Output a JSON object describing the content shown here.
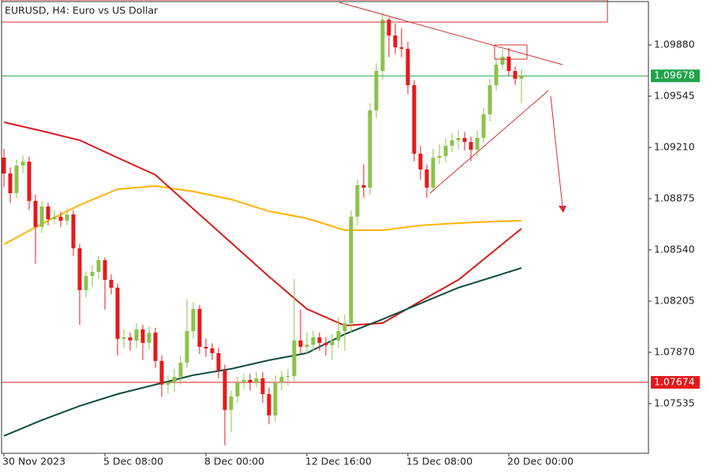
{
  "chart_data": {
    "type": "candlestick",
    "title": "EURUSD, H4:  Euro vs US Dollar",
    "categories": [
      "30 Nov 2023",
      null,
      null,
      null,
      null,
      null,
      null,
      null,
      null,
      null,
      null,
      null,
      null,
      null,
      null,
      null,
      "5 Dec 08:00",
      null,
      null,
      null,
      null,
      null,
      null,
      null,
      null,
      null,
      null,
      null,
      null,
      null,
      null,
      null,
      "8 Dec 00:00",
      null,
      null,
      null,
      null,
      null,
      null,
      null,
      null,
      null,
      null,
      null,
      null,
      null,
      null,
      null,
      "12 Dec 16:00",
      null,
      null,
      null,
      null,
      null,
      null,
      null,
      null,
      null,
      null,
      null,
      null,
      null,
      null,
      null,
      "15 Dec 08:00",
      null,
      null,
      null,
      null,
      null,
      null,
      null,
      null,
      null,
      null,
      null,
      null,
      null,
      null,
      null,
      "20 Dec 00:00",
      null,
      null
    ],
    "open": [
      1.09143,
      1.0904,
      1.08911,
      1.09092,
      1.09117,
      1.0886,
      1.0869,
      1.08824,
      1.08741,
      1.08757,
      1.08731,
      1.08772,
      1.08551,
      1.08277,
      1.0837,
      1.08396,
      1.08473,
      1.08344,
      1.08293,
      1.07958,
      1.07968,
      1.07948,
      1.0802,
      1.07932,
      1.07999,
      1.07814,
      1.07659,
      1.07674,
      1.0771,
      1.07803,
      1.08009,
      1.08154,
      1.07906,
      1.07896,
      1.07865,
      1.07752,
      1.07494,
      1.07582,
      1.07674,
      1.0769,
      1.07674,
      1.077,
      1.07597,
      1.07458,
      1.07674,
      1.0771,
      1.07715,
      1.07948,
      1.07906,
      1.0792,
      1.07968,
      1.07932,
      1.07917,
      1.07948,
      1.08009,
      1.0806,
      1.08757,
      1.08963,
      1.08947,
      1.09452,
      1.0971,
      1.10045,
      1.09942,
      1.09865,
      1.09855,
      1.09617,
      1.09169,
      1.09066,
      1.08947,
      1.09143,
      1.09154,
      1.09221,
      1.09257,
      1.09272,
      1.09246,
      1.09195,
      1.09272,
      1.09427,
      1.09617,
      1.09751,
      1.09803,
      1.0971,
      1.09659
    ],
    "high": [
      1.092,
      1.0908,
      1.0913,
      1.0916,
      1.0915,
      1.089,
      1.0886,
      1.0885,
      1.088,
      1.0879,
      1.0881,
      1.088,
      1.0858,
      1.084,
      1.0844,
      1.085,
      1.0849,
      1.0838,
      1.0832,
      1.0802,
      1.08,
      1.0806,
      1.0805,
      1.0804,
      1.0803,
      1.0785,
      1.0772,
      1.0776,
      1.0785,
      1.0822,
      1.082,
      1.0818,
      1.0796,
      1.0793,
      1.079,
      1.0779,
      1.0762,
      1.0771,
      1.0773,
      1.0773,
      1.0774,
      1.0774,
      1.0764,
      1.0772,
      1.0775,
      1.0776,
      1.0835,
      1.0815,
      1.08,
      1.0801,
      1.08,
      1.0797,
      1.0799,
      1.081,
      1.0812,
      1.088,
      1.09,
      1.091,
      1.095,
      1.0976,
      1.1009,
      1.1006,
      1.1002,
      1.0999,
      1.099,
      1.0965,
      1.0922,
      1.091,
      1.092,
      1.0923,
      1.0927,
      1.093,
      1.0932,
      1.0931,
      1.0928,
      1.0932,
      1.0947,
      1.0966,
      1.098,
      1.0985,
      1.0986,
      1.0974,
      1.0972
    ],
    "low": [
      1.0895,
      1.0885,
      1.0888,
      1.0904,
      1.088,
      1.0845,
      1.0865,
      1.087,
      1.0871,
      1.0869,
      1.087,
      1.085,
      1.0805,
      1.0823,
      1.083,
      1.0835,
      1.0815,
      1.0825,
      1.0785,
      1.079,
      1.0788,
      1.079,
      1.0782,
      1.0789,
      1.0777,
      1.0758,
      1.076,
      1.0761,
      1.0766,
      1.0777,
      1.0796,
      1.0786,
      1.0784,
      1.0782,
      1.077,
      1.0726,
      1.0735,
      1.0754,
      1.0763,
      1.0762,
      1.0764,
      1.0754,
      1.074,
      1.0742,
      1.0762,
      1.0765,
      1.0768,
      1.0786,
      1.0786,
      1.0788,
      1.0788,
      1.0785,
      1.0782,
      1.079,
      1.0788,
      1.08,
      1.087,
      1.0888,
      1.089,
      1.094,
      1.0965,
      1.098,
      1.0982,
      1.098,
      1.0956,
      1.0912,
      1.09,
      1.0888,
      1.0892,
      1.091,
      1.0911,
      1.0918,
      1.092,
      1.0919,
      1.0912,
      1.0915,
      1.0924,
      1.0938,
      1.0958,
      1.0972,
      1.0968,
      1.0962,
      1.095
    ],
    "close": [
      1.0904,
      1.08911,
      1.09092,
      1.09117,
      1.0886,
      1.0869,
      1.08824,
      1.08741,
      1.08757,
      1.08731,
      1.08772,
      1.08551,
      1.08277,
      1.0837,
      1.08396,
      1.08473,
      1.08344,
      1.08293,
      1.07958,
      1.07968,
      1.07948,
      1.0802,
      1.07932,
      1.07999,
      1.07814,
      1.07659,
      1.07674,
      1.0771,
      1.07803,
      1.08009,
      1.08154,
      1.07906,
      1.07896,
      1.07865,
      1.07752,
      1.07494,
      1.07582,
      1.07674,
      1.0769,
      1.07674,
      1.077,
      1.07597,
      1.07458,
      1.07674,
      1.0771,
      1.07715,
      1.07948,
      1.07906,
      1.0792,
      1.07968,
      1.07932,
      1.07917,
      1.07948,
      1.08009,
      1.0806,
      1.08757,
      1.08963,
      1.08947,
      1.09452,
      1.0971,
      1.10045,
      1.09942,
      1.09865,
      1.09855,
      1.09617,
      1.09169,
      1.09066,
      1.08947,
      1.09143,
      1.09154,
      1.09221,
      1.09257,
      1.09272,
      1.09246,
      1.09195,
      1.09272,
      1.09427,
      1.09617,
      1.09751,
      1.09803,
      1.0971,
      1.09659,
      1.09678
    ],
    "up_color": "#8bc34a",
    "down_color": "#e5191b",
    "overlays": [
      {
        "color": "#ffb300",
        "x": [
          0,
          6,
          12,
          18,
          24,
          30,
          36,
          42,
          48,
          54,
          60,
          66,
          72,
          78,
          82
        ],
        "values": [
          1.08576,
          1.0871,
          1.08834,
          1.08937,
          1.08958,
          1.08922,
          1.0887,
          1.08793,
          1.08746,
          1.08669,
          1.08669,
          1.087,
          1.08715,
          1.08726,
          1.08731
        ]
      },
      {
        "color": "#d81b1b",
        "x": [
          0,
          6,
          12,
          18,
          24,
          30,
          36,
          42,
          48,
          54,
          60,
          66,
          72,
          78,
          82
        ],
        "values": [
          1.09375,
          1.09318,
          1.09257,
          1.09143,
          1.0903,
          1.08808,
          1.08587,
          1.08365,
          1.08154,
          1.08045,
          1.08061,
          1.08205,
          1.08344,
          1.08545,
          1.08679
        ]
      },
      {
        "color": "#0d4d40",
        "x": [
          0,
          6,
          12,
          18,
          24,
          30,
          36,
          42,
          48,
          54,
          60,
          66,
          72,
          78,
          82
        ],
        "values": [
          1.07324,
          1.07427,
          1.0752,
          1.07597,
          1.07659,
          1.07721,
          1.07762,
          1.07819,
          1.07865,
          1.07989,
          1.08087,
          1.0819,
          1.08293,
          1.0837,
          1.08422
        ]
      }
    ],
    "price_lines": [
      {
        "value": 1.09678,
        "color": "#1fa34a"
      },
      {
        "value": 1.07674,
        "color": "#e5191b"
      }
    ],
    "ylim": [
      1.0721,
      1.10174
    ],
    "yticks": [
      {
        "value": 1.0988,
        "label": "1.09880"
      },
      1.09545,
      {
        "value": 1.0921,
        "label": "1.09210"
      },
      1.08875,
      {
        "value": 1.0854,
        "label": "1.08540"
      },
      1.08205,
      {
        "value": 1.0787,
        "label": "1.07870"
      },
      1.07535
    ]
  }
}
